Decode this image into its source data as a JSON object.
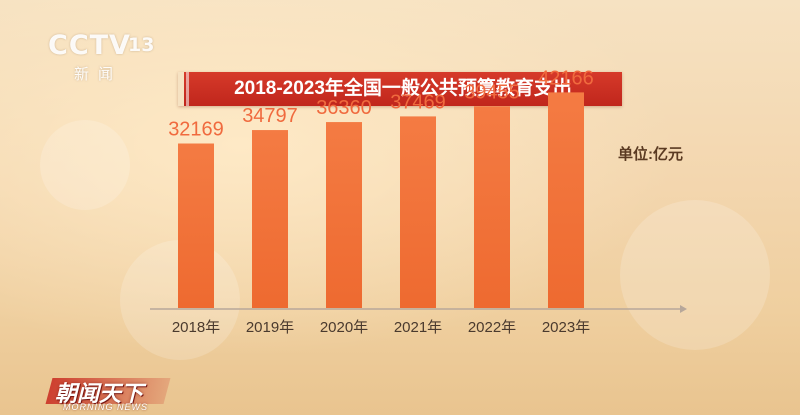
{
  "channel": {
    "logo_text": "CCTV",
    "logo_number": "13",
    "logo_subtitle": "新闻"
  },
  "program": {
    "name_cn": "朝闻天下",
    "name_en": "MORNING NEWS"
  },
  "colors": {
    "title_bar": "#c9301f",
    "bar_top": "#f47b43",
    "bar_bottom": "#ee6a30",
    "value_label": "#f06a3e",
    "axis": "#b7a79a"
  },
  "chart_data": {
    "type": "bar",
    "title": "2018-2023年全国一般公共预算教育支出",
    "unit_label": "单位:亿元",
    "categories": [
      "2018年",
      "2019年",
      "2020年",
      "2021年",
      "2022年",
      "2023年"
    ],
    "values": [
      32169,
      34797,
      36360,
      37469,
      39455,
      42166
    ],
    "value_labels": [
      "32169",
      "34797",
      "36360",
      "37469",
      "39455",
      "42166"
    ],
    "ylim": [
      0,
      48500
    ],
    "grid": false,
    "legend": "none"
  }
}
